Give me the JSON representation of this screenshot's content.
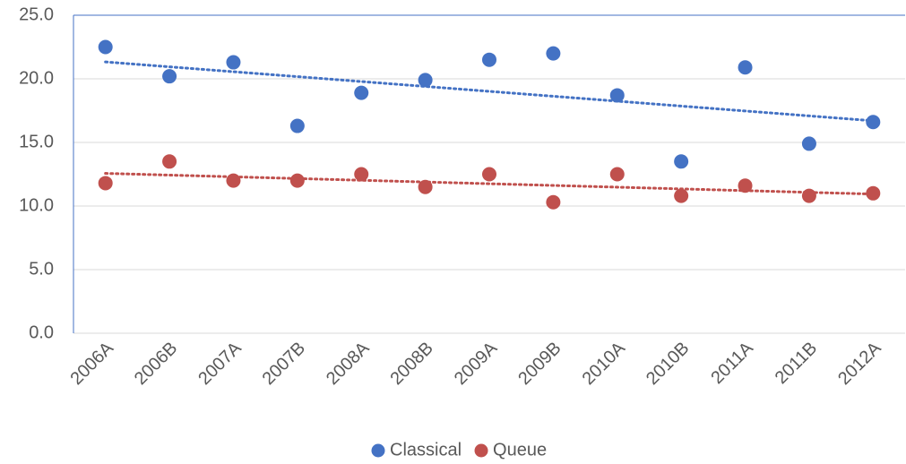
{
  "chart_data": {
    "type": "scatter",
    "categories": [
      "2006A",
      "2006B",
      "2007A",
      "2007B",
      "2008A",
      "2008B",
      "2009A",
      "2009B",
      "2010A",
      "2010B",
      "2011A",
      "2011B",
      "2012A"
    ],
    "series": [
      {
        "name": "Classical",
        "color": "#4472c4",
        "values": [
          22.5,
          20.2,
          21.3,
          16.3,
          18.9,
          19.9,
          21.5,
          22.0,
          18.7,
          13.5,
          20.9,
          14.9,
          16.6
        ]
      },
      {
        "name": "Queue",
        "color": "#c0504d",
        "values": [
          11.8,
          13.5,
          12.0,
          12.0,
          12.5,
          11.5,
          12.5,
          10.3,
          12.5,
          10.8,
          11.6,
          10.8,
          11.0
        ]
      }
    ],
    "ylim": [
      0,
      25
    ],
    "yticks": [
      {
        "value": 0,
        "label": "0.0"
      },
      {
        "value": 5,
        "label": "5.0"
      },
      {
        "value": 10,
        "label": "10.0"
      },
      {
        "value": 15,
        "label": "15.0"
      },
      {
        "value": 20,
        "label": "20.0"
      },
      {
        "value": 25,
        "label": "25.0"
      }
    ],
    "grid": true,
    "trendline": true,
    "legend": "bottom"
  }
}
